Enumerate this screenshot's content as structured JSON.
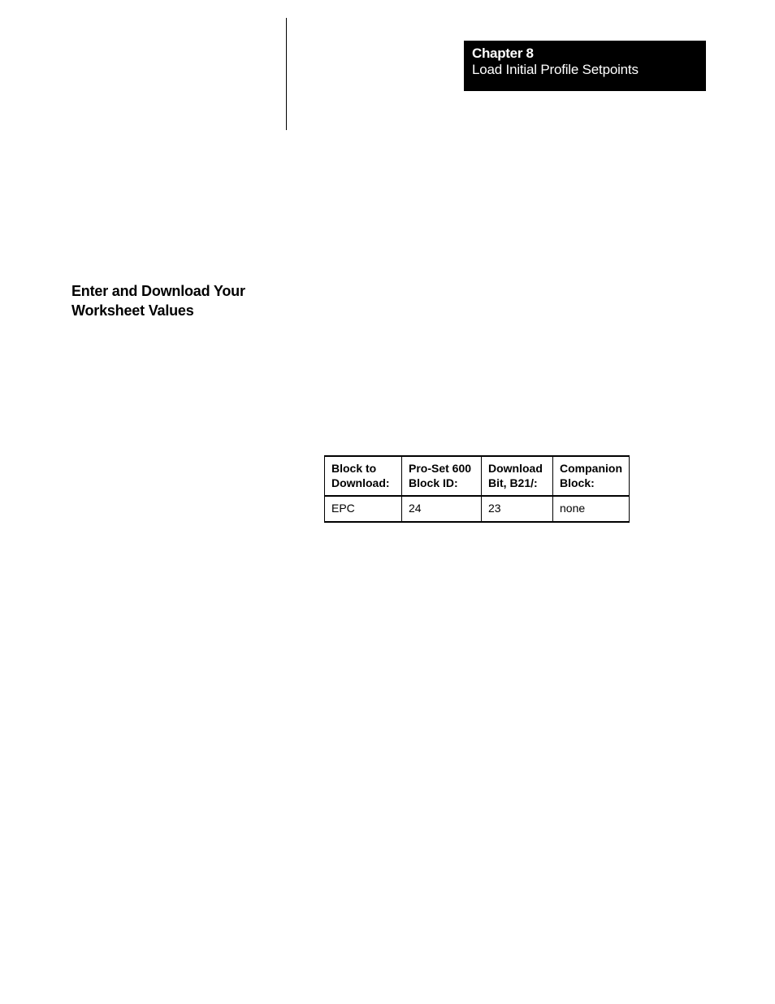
{
  "chapter": {
    "label": "Chapter  8",
    "title": "Load Initial Profile Setpoints"
  },
  "section": {
    "heading": "Enter and Download Your Worksheet Values"
  },
  "table": {
    "type": "table",
    "columns": [
      {
        "line1": "Block to",
        "line2": "Download:"
      },
      {
        "line1": "Pro-Set 600",
        "line2": "Block ID:"
      },
      {
        "line1": "Download",
        "line2": "Bit, B21/:"
      },
      {
        "line1": "Companion",
        "line2": "Block:"
      }
    ],
    "rows": [
      [
        "EPC",
        "24",
        "23",
        "none"
      ]
    ],
    "border_color": "#000000",
    "header_fontweight": "bold",
    "body_fontweight": "normal",
    "fontsize": 14
  },
  "styles": {
    "background_color": "#ffffff",
    "chapter_box_bg": "#000000",
    "chapter_box_fg": "#ffffff",
    "heading_fontsize": 18,
    "chapter_fontsize": 17
  }
}
